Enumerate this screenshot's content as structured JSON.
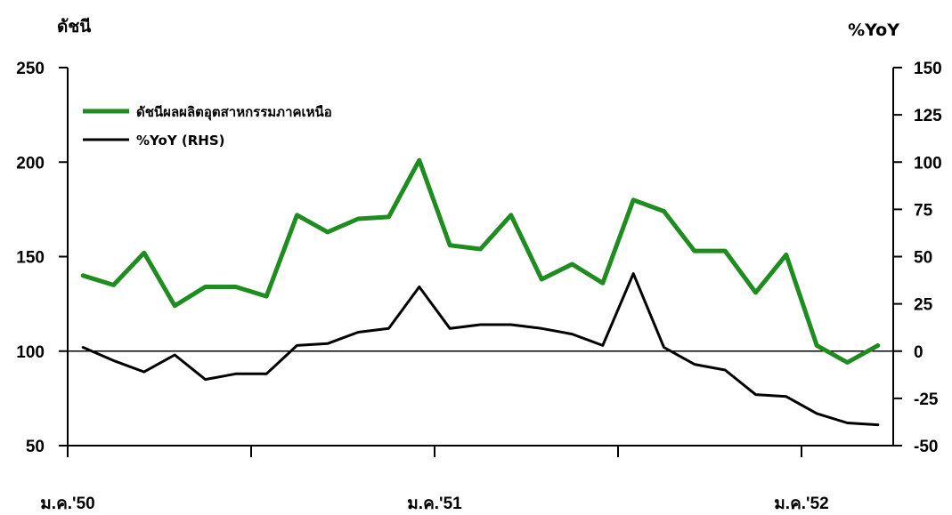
{
  "chart_data": {
    "type": "line",
    "y_left_label": "ดัชนี",
    "y_right_label": "%YoY",
    "y_left_lim": [
      50,
      250
    ],
    "y_left_ticks": [
      "250",
      "200",
      "150",
      "100",
      "50"
    ],
    "y_right_lim": [
      -50,
      150
    ],
    "y_right_ticks": [
      "150",
      "125",
      "100",
      "75",
      "50",
      "25",
      "0",
      "-25",
      "-50"
    ],
    "x_labels": [
      "ม.ค.'50",
      "ม.ค.'51",
      "ม.ค.'52"
    ],
    "x_label_index": [
      0,
      12,
      24
    ],
    "point_count": 27,
    "colors": {
      "index": "#1f8c1f",
      "yoy": "#000000"
    },
    "series": [
      {
        "name": "ดัชนีผลผลิตอุตสาหกรรมภาคเหนือ",
        "axis": "left",
        "values": [
          140,
          135,
          152,
          124,
          134,
          134,
          129,
          172,
          163,
          170,
          171,
          201,
          156,
          154,
          172,
          138,
          146,
          136,
          180,
          174,
          153,
          153,
          131,
          151,
          103,
          94,
          103
        ]
      },
      {
        "name": "%YoY (RHS)",
        "axis": "right",
        "values": [
          2,
          -5,
          -11,
          -2,
          -15,
          -12,
          -12,
          3,
          4,
          10,
          12,
          34,
          12,
          14,
          14,
          12,
          9,
          3,
          41,
          2,
          -7,
          -10,
          -23,
          -24,
          -33,
          -38,
          -39
        ]
      }
    ]
  }
}
